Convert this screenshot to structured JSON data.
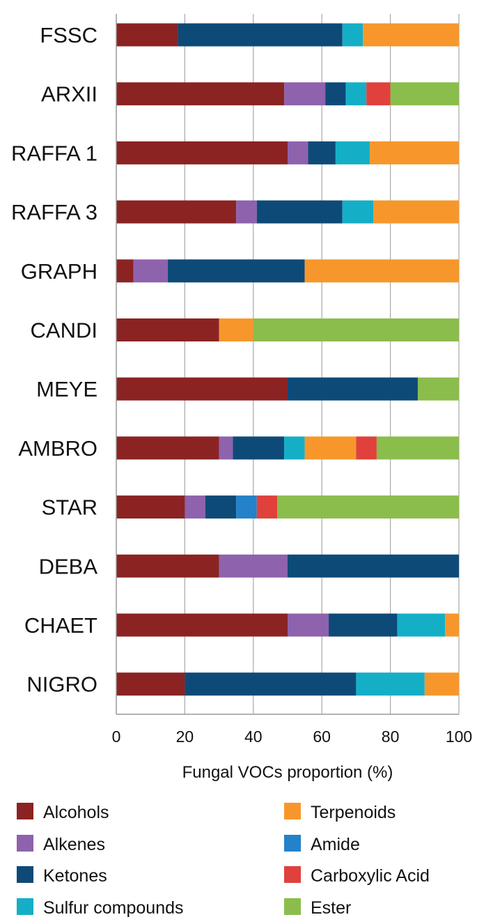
{
  "chart_data": {
    "type": "bar",
    "orientation": "horizontal",
    "stacked": true,
    "title": "",
    "xlabel": "Fungal VOCs proportion (%)",
    "ylabel": "",
    "xlim": [
      0,
      100
    ],
    "xticks": [
      "0",
      "20",
      "40",
      "60",
      "80",
      "100"
    ],
    "grid": true,
    "legend_position": "bottom",
    "categories": [
      "FSSC",
      "ARXII",
      "RAFFA 1",
      "RAFFA 3",
      "GRAPH",
      "CANDI",
      "MEYE",
      "AMBRO",
      "STAR",
      "DEBA",
      "CHAET",
      "NIGRO"
    ],
    "series": [
      {
        "name": "Alcohols",
        "color": "#8b2323",
        "values": [
          18,
          49,
          50,
          35,
          5,
          30,
          50,
          30,
          20,
          30,
          50,
          20
        ]
      },
      {
        "name": "Alkenes",
        "color": "#8e62ad",
        "values": [
          0,
          12,
          6,
          6,
          10,
          0,
          0,
          4,
          6,
          20,
          12,
          0
        ]
      },
      {
        "name": "Ketones",
        "color": "#0e4a78",
        "values": [
          48,
          6,
          8,
          25,
          40,
          0,
          38,
          15,
          9,
          50,
          20,
          50
        ]
      },
      {
        "name": "Sulfur compounds",
        "color": "#14afc7",
        "values": [
          6,
          6,
          10,
          9,
          0,
          0,
          0,
          6,
          0,
          0,
          14,
          20
        ]
      },
      {
        "name": "Terpenoids",
        "color": "#f7972b",
        "values": [
          28,
          0,
          26,
          25,
          45,
          10,
          0,
          15,
          0,
          0,
          4,
          10
        ]
      },
      {
        "name": "Amide",
        "color": "#2382c9",
        "values": [
          0,
          0,
          0,
          0,
          0,
          0,
          0,
          0,
          6,
          0,
          0,
          0
        ]
      },
      {
        "name": "Carboxylic Acid",
        "color": "#e0413c",
        "values": [
          0,
          7,
          0,
          0,
          0,
          0,
          0,
          6,
          6,
          0,
          0,
          0
        ]
      },
      {
        "name": "Ester",
        "color": "#8bbd4c",
        "values": [
          0,
          20,
          0,
          0,
          0,
          60,
          12,
          24,
          53,
          0,
          0,
          0
        ]
      }
    ],
    "legend_order": [
      "Alcohols",
      "Terpenoids",
      "Alkenes",
      "Amide",
      "Ketones",
      "Carboxylic Acid",
      "Sulfur compounds",
      "Ester"
    ]
  }
}
